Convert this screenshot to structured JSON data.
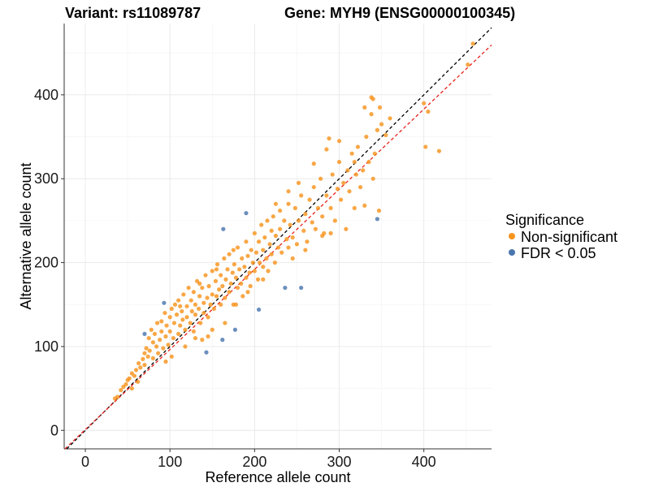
{
  "chart_data": {
    "type": "scatter",
    "title_left": "Variant: rs11089787",
    "title_right": "Gene: MYH9 (ENSG00000100345)",
    "xlabel": "Reference allele count",
    "ylabel": "Alternative allele count",
    "xlim": [
      -25,
      480
    ],
    "ylim": [
      -22,
      485
    ],
    "xticks": [
      0,
      100,
      200,
      300,
      400
    ],
    "yticks": [
      0,
      100,
      200,
      300,
      400
    ],
    "grid": true,
    "legend": {
      "title": "Significance",
      "placement": "right",
      "items": [
        {
          "label": "Non-significant",
          "color": "#F7941D"
        },
        {
          "label": "FDR < 0.05",
          "color": "#4A76AE"
        }
      ]
    },
    "reference_lines": [
      {
        "name": "identity",
        "slope": 1,
        "intercept": 0,
        "color": "#000000",
        "style": "dashed"
      },
      {
        "name": "fit",
        "slope": 0.955,
        "intercept": 1,
        "color": "#E8221C",
        "style": "dashed"
      }
    ],
    "series": [
      {
        "name": "Non-significant",
        "color": "#F7941D",
        "points": [
          [
            35,
            38
          ],
          [
            38,
            40
          ],
          [
            42,
            48
          ],
          [
            45,
            52
          ],
          [
            48,
            55
          ],
          [
            50,
            60
          ],
          [
            52,
            62
          ],
          [
            55,
            50
          ],
          [
            55,
            68
          ],
          [
            58,
            65
          ],
          [
            60,
            72
          ],
          [
            62,
            58
          ],
          [
            63,
            80
          ],
          [
            65,
            75
          ],
          [
            68,
            85
          ],
          [
            70,
            92
          ],
          [
            70,
            78
          ],
          [
            72,
            98
          ],
          [
            74,
            88
          ],
          [
            75,
            110
          ],
          [
            76,
            95
          ],
          [
            78,
            120
          ],
          [
            80,
            86
          ],
          [
            80,
            105
          ],
          [
            82,
            115
          ],
          [
            84,
            100
          ],
          [
            85,
            128
          ],
          [
            86,
            92
          ],
          [
            88,
            108
          ],
          [
            90,
            130
          ],
          [
            90,
            118
          ],
          [
            92,
            98
          ],
          [
            94,
            140
          ],
          [
            95,
            112
          ],
          [
            96,
            125
          ],
          [
            98,
            102
          ],
          [
            100,
            135
          ],
          [
            100,
            118
          ],
          [
            102,
            145
          ],
          [
            104,
            110
          ],
          [
            105,
            128
          ],
          [
            106,
            150
          ],
          [
            108,
            138
          ],
          [
            110,
            115
          ],
          [
            110,
            155
          ],
          [
            112,
            125
          ],
          [
            114,
            142
          ],
          [
            115,
            132
          ],
          [
            116,
            162
          ],
          [
            118,
            120
          ],
          [
            120,
            148
          ],
          [
            120,
            135
          ],
          [
            122,
            170
          ],
          [
            124,
            128
          ],
          [
            125,
            155
          ],
          [
            126,
            142
          ],
          [
            128,
            118
          ],
          [
            128,
            165
          ],
          [
            130,
            150
          ],
          [
            130,
            138
          ],
          [
            132,
            178
          ],
          [
            134,
            145
          ],
          [
            135,
            160
          ],
          [
            136,
            128
          ],
          [
            138,
            170
          ],
          [
            140,
            152
          ],
          [
            140,
            140
          ],
          [
            142,
            185
          ],
          [
            144,
            158
          ],
          [
            145,
            135
          ],
          [
            146,
            172
          ],
          [
            148,
            150
          ],
          [
            150,
            190
          ],
          [
            150,
            162
          ],
          [
            152,
            145
          ],
          [
            154,
            178
          ],
          [
            155,
            160
          ],
          [
            156,
            198
          ],
          [
            158,
            168
          ],
          [
            160,
            150
          ],
          [
            160,
            185
          ],
          [
            162,
            172
          ],
          [
            164,
            205
          ],
          [
            165,
            158
          ],
          [
            166,
            180
          ],
          [
            168,
            192
          ],
          [
            170,
            165
          ],
          [
            170,
            210
          ],
          [
            172,
            175
          ],
          [
            174,
            188
          ],
          [
            175,
            150
          ],
          [
            176,
            198
          ],
          [
            178,
            182
          ],
          [
            180,
            218
          ],
          [
            180,
            170
          ],
          [
            182,
            192
          ],
          [
            184,
            175
          ],
          [
            185,
            205
          ],
          [
            186,
            160
          ],
          [
            188,
            195
          ],
          [
            190,
            225
          ],
          [
            190,
            182
          ],
          [
            192,
            208
          ],
          [
            194,
            188
          ],
          [
            195,
            172
          ],
          [
            196,
            215
          ],
          [
            198,
            200
          ],
          [
            200,
            235
          ],
          [
            200,
            190
          ],
          [
            202,
            212
          ],
          [
            204,
            180
          ],
          [
            205,
            225
          ],
          [
            206,
            200
          ],
          [
            208,
            245
          ],
          [
            210,
            215
          ],
          [
            210,
            195
          ],
          [
            212,
            230
          ],
          [
            214,
            205
          ],
          [
            215,
            250
          ],
          [
            216,
            190
          ],
          [
            218,
            222
          ],
          [
            220,
            238
          ],
          [
            220,
            210
          ],
          [
            222,
            255
          ],
          [
            224,
            200
          ],
          [
            225,
            232
          ],
          [
            228,
            218
          ],
          [
            230,
            262
          ],
          [
            230,
            240
          ],
          [
            232,
            212
          ],
          [
            235,
            250
          ],
          [
            238,
            228
          ],
          [
            240,
            270
          ],
          [
            240,
            218
          ],
          [
            242,
            245
          ],
          [
            245,
            230
          ],
          [
            248,
            265
          ],
          [
            250,
            222
          ],
          [
            252,
            250
          ],
          [
            255,
            280
          ],
          [
            258,
            238
          ],
          [
            260,
            258
          ],
          [
            262,
            225
          ],
          [
            265,
            275
          ],
          [
            268,
            248
          ],
          [
            270,
            290
          ],
          [
            272,
            240
          ],
          [
            275,
            265
          ],
          [
            278,
            300
          ],
          [
            280,
            255
          ],
          [
            282,
            235
          ],
          [
            285,
            280
          ],
          [
            288,
            348
          ],
          [
            290,
            265
          ],
          [
            292,
            305
          ],
          [
            295,
            250
          ],
          [
            298,
            288
          ],
          [
            300,
            320
          ],
          [
            302,
            275
          ],
          [
            305,
            295
          ],
          [
            308,
            240
          ],
          [
            310,
            310
          ],
          [
            312,
            285
          ],
          [
            315,
            330
          ],
          [
            318,
            265
          ],
          [
            320,
            305
          ],
          [
            322,
            338
          ],
          [
            325,
            290
          ],
          [
            328,
            310
          ],
          [
            330,
            268
          ],
          [
            332,
            350
          ],
          [
            335,
            320
          ],
          [
            338,
            397
          ],
          [
            340,
            300
          ],
          [
            342,
            330
          ],
          [
            345,
            358
          ],
          [
            348,
            385
          ],
          [
            350,
            365
          ],
          [
            355,
            352
          ],
          [
            360,
            372
          ],
          [
            400,
            390
          ],
          [
            402,
            338
          ],
          [
            405,
            380
          ],
          [
            418,
            333
          ],
          [
            452,
            436
          ],
          [
            458,
            461
          ],
          [
            145,
            112
          ],
          [
            165,
            128
          ],
          [
            118,
            100
          ],
          [
            130,
            110
          ],
          [
            95,
            82
          ],
          [
            102,
            88
          ],
          [
            178,
            150
          ],
          [
            192,
            165
          ],
          [
            210,
            180
          ],
          [
            150,
            120
          ],
          [
            138,
            108
          ],
          [
            245,
            205
          ],
          [
            260,
            215
          ],
          [
            280,
            232
          ],
          [
            290,
            235
          ],
          [
            175,
            215
          ],
          [
            155,
            192
          ],
          [
            135,
            175
          ],
          [
            112,
            148
          ],
          [
            225,
            270
          ],
          [
            240,
            285
          ],
          [
            252,
            295
          ],
          [
            270,
            318
          ],
          [
            285,
            335
          ],
          [
            300,
            345
          ],
          [
            338,
            377
          ],
          [
            347,
            262
          ],
          [
            330,
            385
          ],
          [
            318,
            320
          ],
          [
            340,
            395
          ]
        ]
      },
      {
        "name": "FDR < 0.05",
        "color": "#4A76AE",
        "points": [
          [
            70,
            115
          ],
          [
            93,
            152
          ],
          [
            143,
            93
          ],
          [
            162,
            108
          ],
          [
            163,
            240
          ],
          [
            177,
            120
          ],
          [
            190,
            259
          ],
          [
            205,
            144
          ],
          [
            236,
            170
          ],
          [
            255,
            170
          ],
          [
            345,
            252
          ]
        ]
      }
    ]
  }
}
